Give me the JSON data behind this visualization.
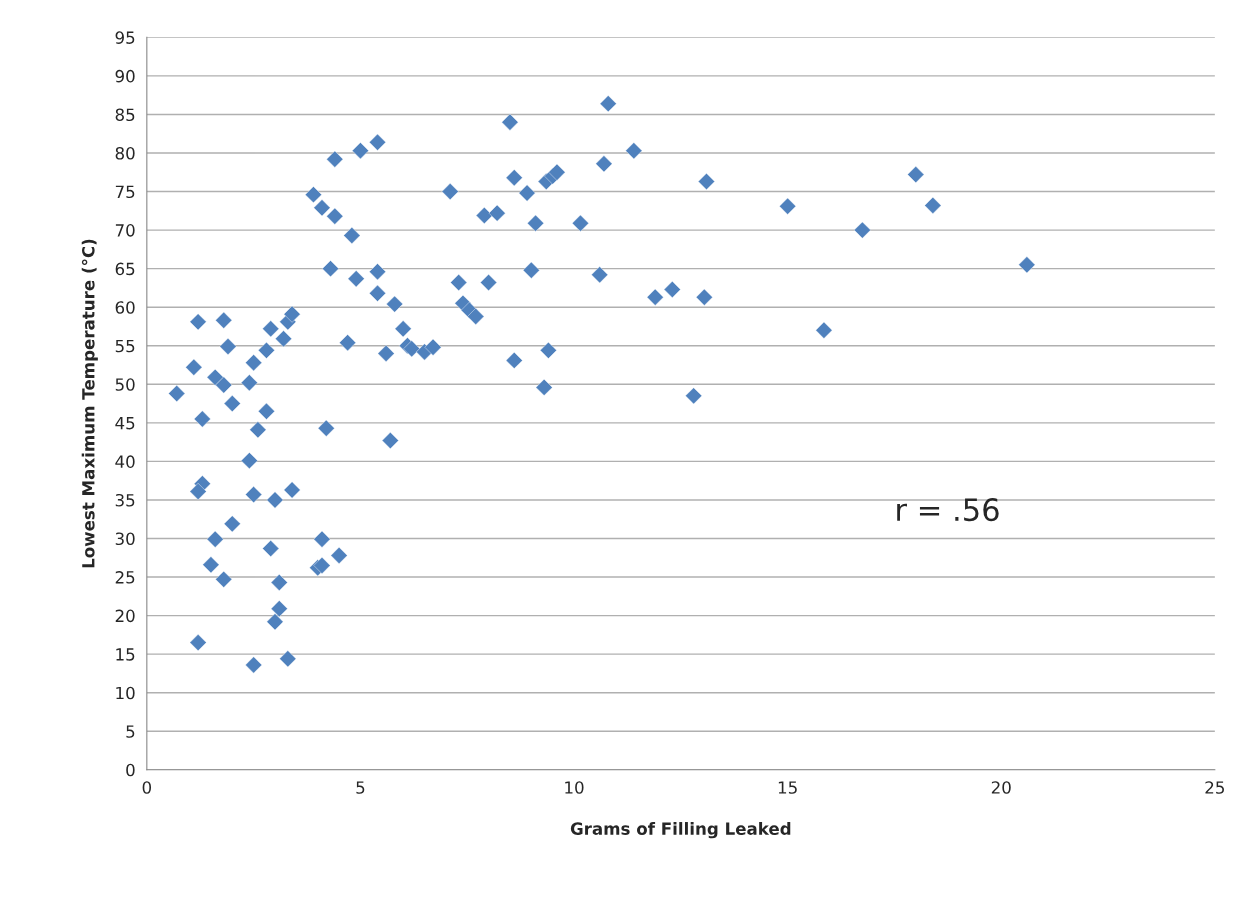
{
  "chart_data": {
    "type": "scatter",
    "xlabel": "Grams of Filling Leaked",
    "ylabel": "Lowest Maximum Temperature (°C)",
    "annotations": [
      "r = .56"
    ],
    "xlim": [
      0,
      25
    ],
    "xticks": [
      0,
      5,
      10,
      15,
      20,
      25
    ],
    "ylim": [
      0,
      95
    ],
    "yticks": [
      0,
      5,
      10,
      15,
      20,
      25,
      30,
      35,
      40,
      45,
      50,
      55,
      60,
      65,
      70,
      75,
      80,
      85,
      90,
      95
    ],
    "grid": "y",
    "marker": "diamond",
    "legend": false,
    "series": [
      {
        "color": "#4f81bd",
        "x": [
          0.7,
          1.1,
          1.2,
          1.3,
          1.3,
          1.2,
          1.2,
          1.6,
          1.8,
          1.8,
          1.9,
          2.0,
          1.6,
          1.5,
          2.0,
          1.8,
          2.4,
          2.4,
          2.5,
          2.5,
          2.5,
          2.6,
          2.8,
          2.8,
          2.9,
          2.9,
          3.0,
          3.0,
          3.1,
          3.1,
          3.2,
          3.3,
          3.4,
          3.4,
          3.3,
          3.9,
          4.1,
          4.4,
          4.4,
          4.3,
          4.2,
          4.1,
          4.0,
          4.1,
          4.5,
          4.8,
          4.9,
          4.7,
          5.0,
          5.4,
          5.4,
          5.4,
          5.6,
          5.7,
          5.8,
          6.0,
          6.1,
          6.2,
          6.5,
          6.7,
          7.1,
          7.3,
          7.4,
          7.55,
          7.7,
          7.9,
          8.2,
          8.0,
          8.5,
          8.6,
          8.6,
          8.9,
          9.1,
          9.0,
          9.35,
          9.5,
          9.6,
          9.4,
          9.3,
          10.15,
          10.6,
          10.7,
          10.8,
          11.4,
          11.9,
          12.3,
          12.8,
          13.05,
          13.1,
          15.0,
          15.85,
          16.75,
          18.0,
          18.4,
          20.6
        ],
        "values": [
          48.8,
          52.2,
          58.1,
          45.5,
          37.1,
          36.1,
          16.5,
          50.9,
          49.9,
          58.3,
          54.9,
          47.5,
          29.9,
          26.6,
          31.9,
          24.7,
          50.2,
          40.1,
          52.8,
          35.7,
          13.6,
          44.1,
          54.4,
          46.5,
          57.2,
          28.7,
          35.0,
          19.2,
          20.9,
          24.3,
          55.9,
          58.1,
          59.1,
          36.3,
          14.4,
          74.6,
          72.9,
          71.8,
          79.2,
          65.0,
          44.3,
          29.9,
          26.2,
          26.5,
          27.8,
          69.3,
          63.7,
          55.4,
          80.3,
          81.4,
          64.6,
          61.8,
          54.0,
          42.7,
          60.4,
          57.2,
          55.0,
          54.6,
          54.2,
          54.8,
          75.0,
          63.2,
          60.5,
          59.6,
          58.8,
          71.9,
          72.2,
          63.2,
          84.0,
          76.8,
          53.1,
          74.8,
          70.9,
          64.8,
          76.3,
          77.0,
          77.5,
          54.4,
          49.6,
          70.9,
          64.2,
          78.6,
          86.4,
          80.3,
          61.3,
          62.3,
          48.5,
          61.3,
          76.3,
          73.1,
          57.0,
          70.0,
          77.2,
          73.2,
          65.5
        ]
      }
    ]
  }
}
